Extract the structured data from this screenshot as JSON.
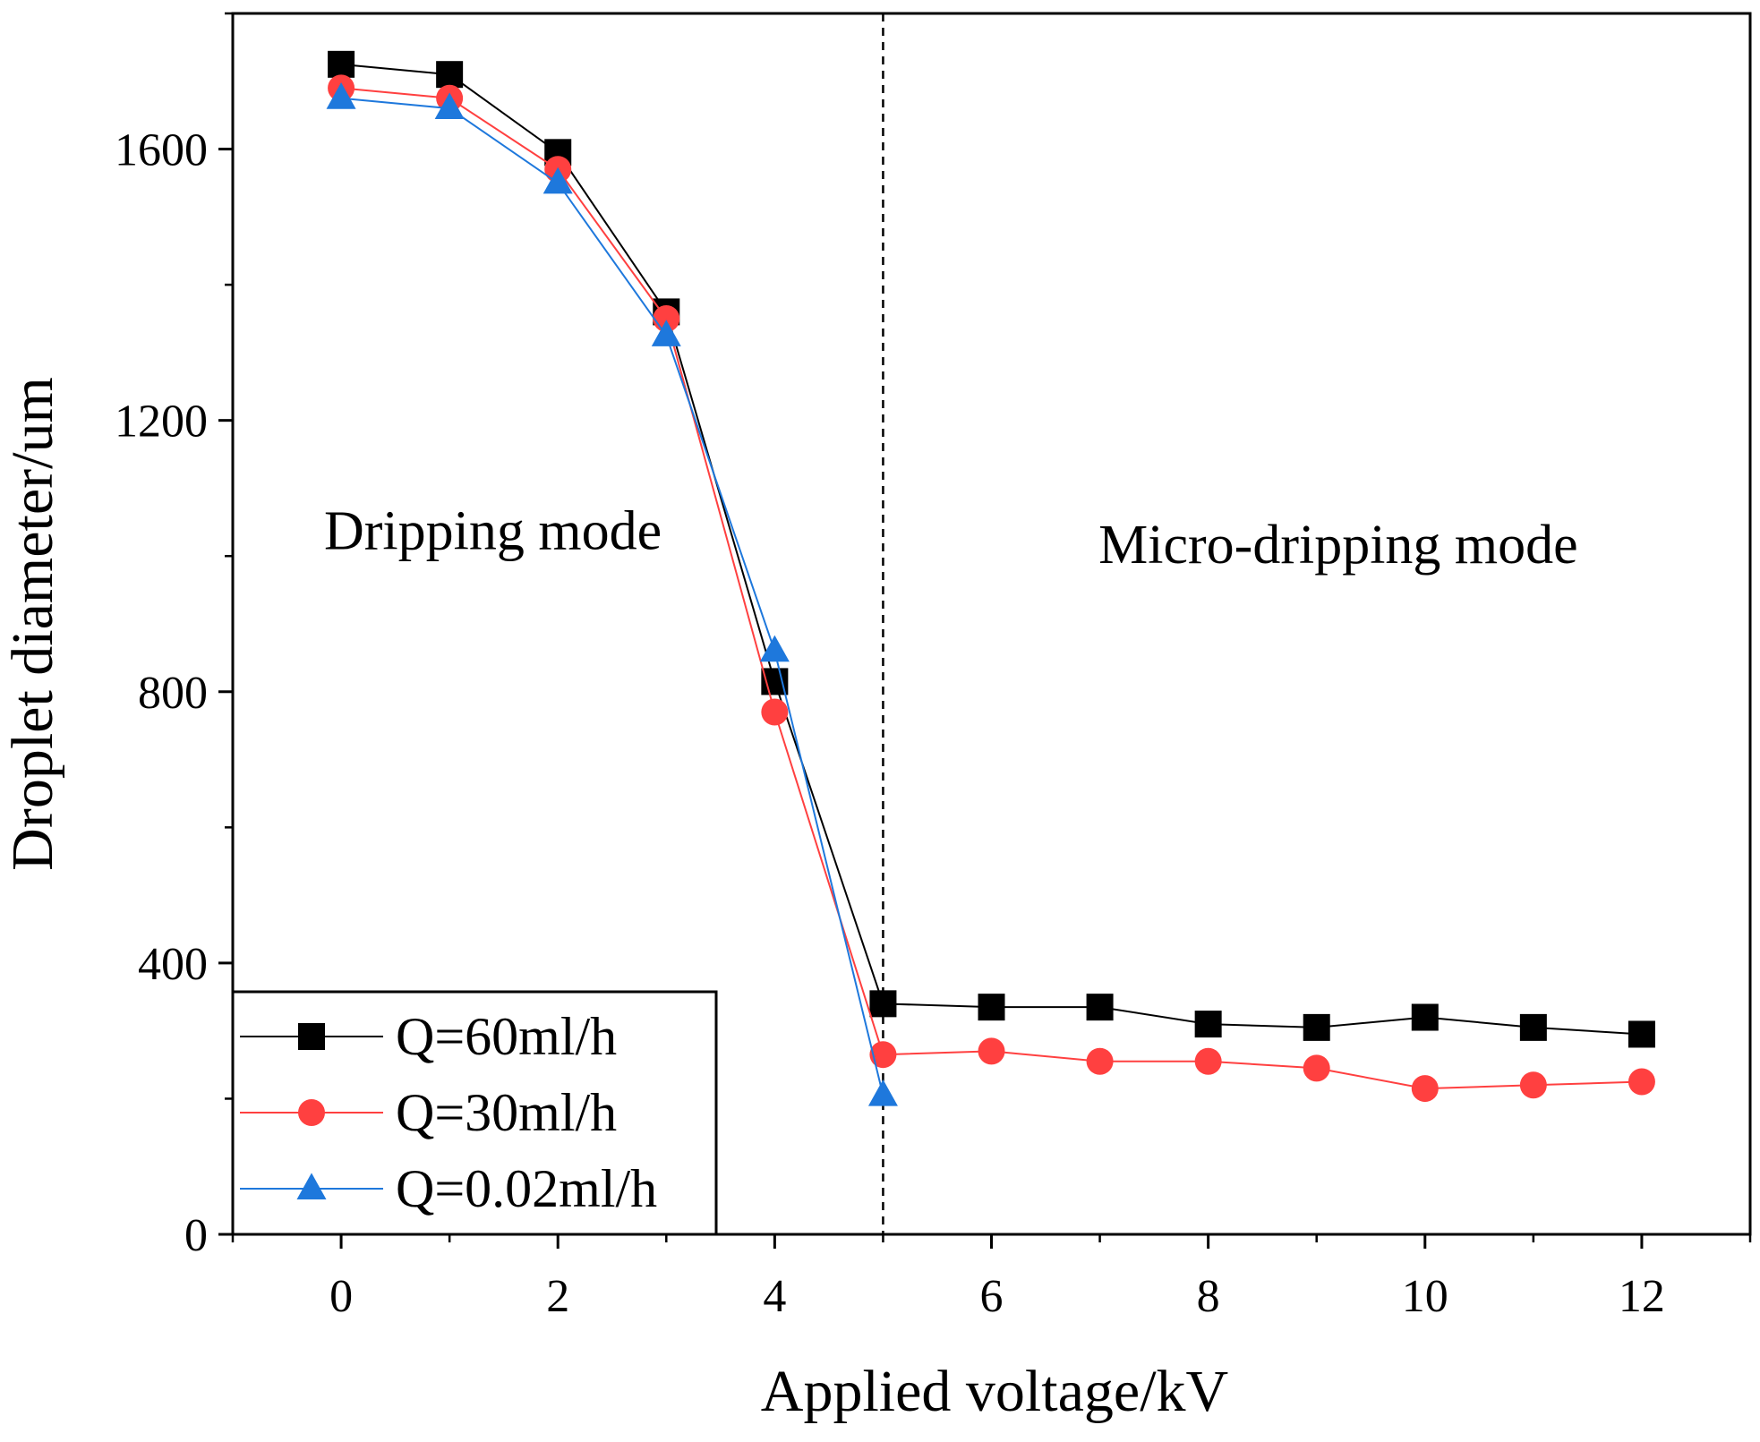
{
  "chart_data": {
    "type": "line",
    "title": "",
    "xlabel": "Applied voltage/kV",
    "ylabel": "Droplet diameter/um",
    "xlim": [
      -1,
      13
    ],
    "ylim": [
      0,
      1800
    ],
    "x_ticks": [
      0,
      2,
      4,
      6,
      8,
      10,
      12
    ],
    "y_ticks": [
      0,
      400,
      800,
      1200,
      1600
    ],
    "x_tick_labels": [
      "0",
      "2",
      "4",
      "6",
      "8",
      "10",
      "12"
    ],
    "y_tick_labels": [
      "0",
      "400",
      "800",
      "1200",
      "1600"
    ],
    "grid": false,
    "legend_position": "bottom-left",
    "reference_line": {
      "x": 5,
      "style": "dashed"
    },
    "annotations": [
      {
        "text": "Dripping mode",
        "x": 1.4,
        "y": 1010
      },
      {
        "text": "Micro-dripping mode",
        "x": 9.2,
        "y": 990
      }
    ],
    "series": [
      {
        "name": "Q=60ml/h",
        "color": "#000000",
        "marker": "square",
        "x": [
          0,
          1,
          2,
          3,
          4,
          5,
          6,
          7,
          8,
          9,
          10,
          11,
          12
        ],
        "values": [
          1725,
          1710,
          1595,
          1360,
          815,
          340,
          335,
          335,
          310,
          305,
          320,
          305,
          295
        ]
      },
      {
        "name": "Q=30ml/h",
        "color": "#ff4040",
        "marker": "circle",
        "x": [
          0,
          1,
          2,
          3,
          4,
          5,
          6,
          7,
          8,
          9,
          10,
          11,
          12
        ],
        "values": [
          1690,
          1675,
          1570,
          1350,
          770,
          265,
          270,
          255,
          255,
          245,
          215,
          220,
          225
        ]
      },
      {
        "name": "Q=0.02ml/h",
        "color": "#1e78dc",
        "marker": "triangle",
        "x": [
          0,
          1,
          2,
          3,
          4,
          5
        ],
        "values": [
          1675,
          1660,
          1550,
          1325,
          860,
          205
        ]
      }
    ]
  }
}
